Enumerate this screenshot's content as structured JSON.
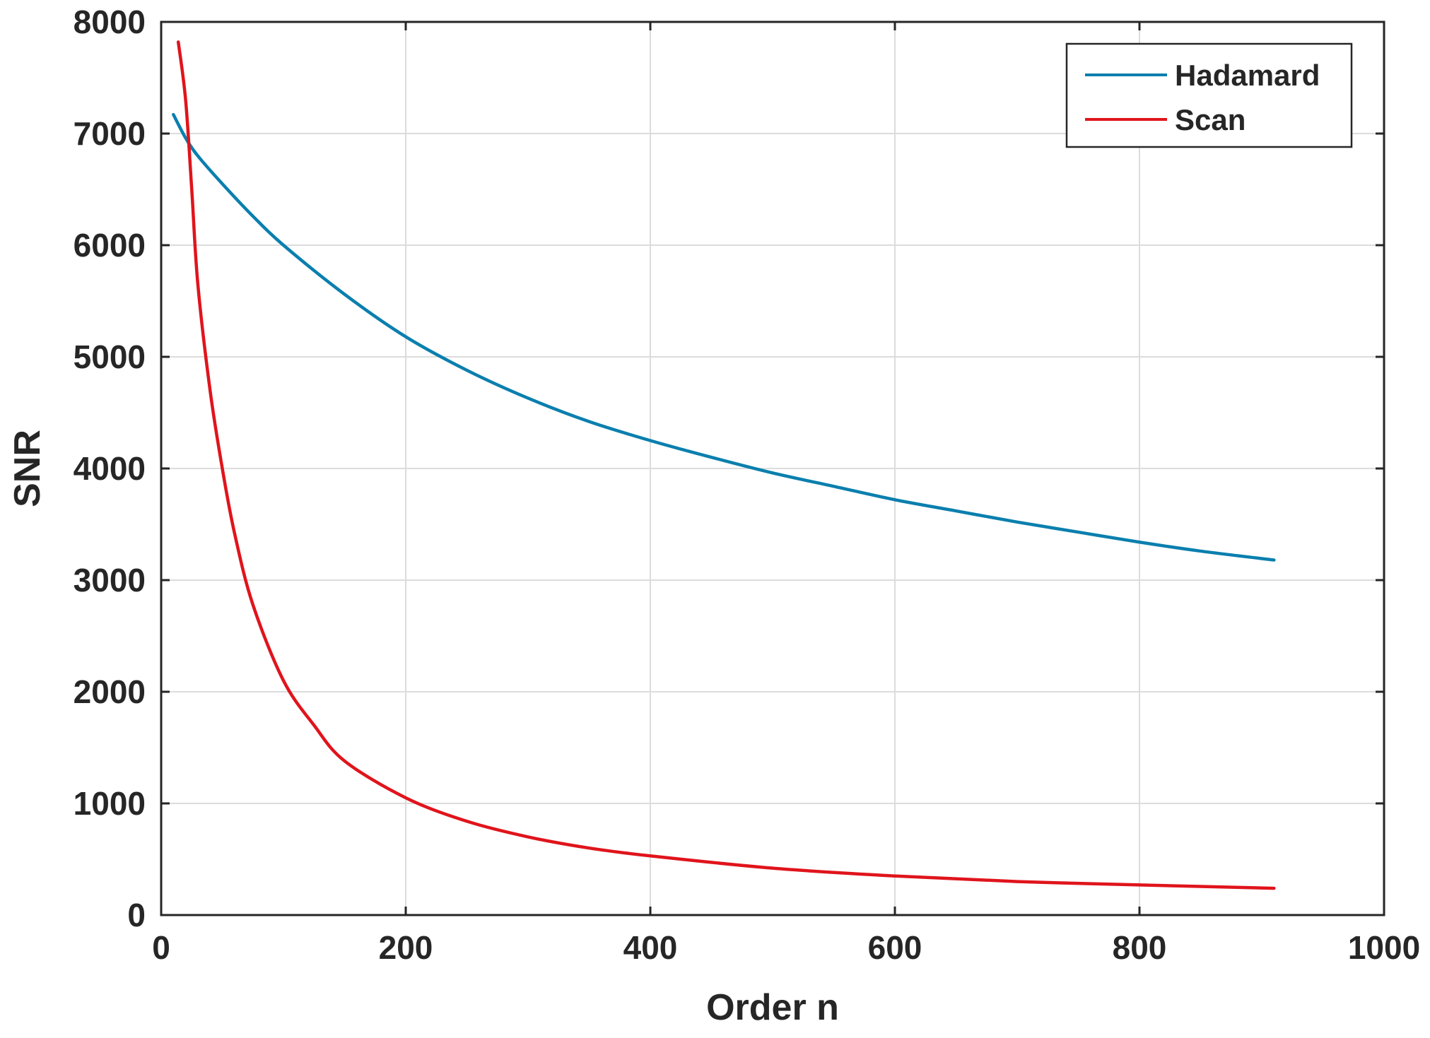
{
  "chart_data": {
    "type": "line",
    "title": "",
    "xlabel": "Order n",
    "ylabel": "SNR",
    "xlim": [
      0,
      1000
    ],
    "ylim": [
      0,
      8000
    ],
    "xticks": [
      "0",
      "200",
      "400",
      "600",
      "800",
      "1000"
    ],
    "yticks": [
      "0",
      "1000",
      "2000",
      "3000",
      "4000",
      "5000",
      "6000",
      "7000",
      "8000"
    ],
    "grid": true,
    "legend_position": "top-right",
    "series": [
      {
        "name": "Hadamard",
        "color": "#0a7fae",
        "x": [
          10,
          20,
          30,
          50,
          75,
          100,
          150,
          200,
          250,
          300,
          350,
          400,
          450,
          500,
          550,
          600,
          650,
          700,
          750,
          800,
          850,
          910
        ],
        "y": [
          7170,
          6960,
          6800,
          6550,
          6260,
          6000,
          5560,
          5180,
          4880,
          4630,
          4420,
          4250,
          4100,
          3960,
          3840,
          3720,
          3620,
          3520,
          3430,
          3340,
          3260,
          3180
        ]
      },
      {
        "name": "Scan",
        "color": "#e0141c",
        "x": [
          14,
          20,
          25,
          30,
          40,
          50,
          60,
          75,
          100,
          125,
          150,
          200,
          250,
          300,
          350,
          400,
          500,
          600,
          700,
          800,
          910
        ],
        "y": [
          7820,
          7300,
          6500,
          5650,
          4700,
          4000,
          3420,
          2780,
          2100,
          1700,
          1380,
          1050,
          840,
          700,
          600,
          530,
          420,
          350,
          300,
          270,
          240
        ]
      }
    ]
  }
}
